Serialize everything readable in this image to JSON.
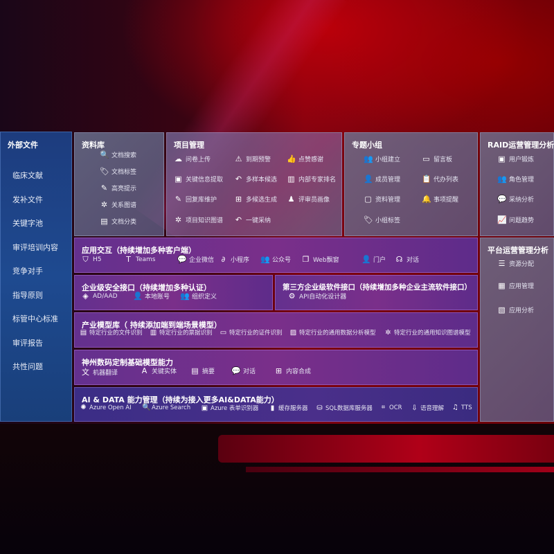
{
  "sidebar": {
    "title": "外部文件",
    "items": [
      "临床文献",
      "发补文件",
      "关键字池",
      "审评培训内容",
      "竞争对手",
      "指导原则",
      "标管中心标准",
      "审评报告",
      "共性问题"
    ]
  },
  "panels": {
    "library": {
      "title": "资料库",
      "items": [
        {
          "label": "文档搜索",
          "icon": "doc-search-icon",
          "glyph": "🔍"
        },
        {
          "label": "文档标签",
          "icon": "tag-icon",
          "glyph": "🏷"
        },
        {
          "label": "高亮提示",
          "icon": "pen-icon",
          "glyph": "✎"
        },
        {
          "label": "关系图谱",
          "icon": "graph-icon",
          "glyph": "✲"
        },
        {
          "label": "文档分类",
          "icon": "doc-category-icon",
          "glyph": "▤"
        }
      ]
    },
    "project": {
      "title": "项目管理",
      "items": [
        {
          "label": "问卷上传",
          "icon": "cloud-upload-icon",
          "glyph": "☁"
        },
        {
          "label": "到期预警",
          "icon": "alarm-icon",
          "glyph": "⚠"
        },
        {
          "label": "点赞感谢",
          "icon": "thumbs-up-icon",
          "glyph": "👍"
        },
        {
          "label": "关键信息提取",
          "icon": "window-icon",
          "glyph": "▣"
        },
        {
          "label": "多样本候选",
          "icon": "reply-icon",
          "glyph": "↶"
        },
        {
          "label": "内部专家排名",
          "icon": "ranking-icon",
          "glyph": "▥"
        },
        {
          "label": "回复库维护",
          "icon": "edit-icon",
          "glyph": "✎"
        },
        {
          "label": "多候选生成",
          "icon": "puzzle-icon",
          "glyph": "⊞"
        },
        {
          "label": "评审员画像",
          "icon": "person-icon",
          "glyph": "♟"
        },
        {
          "label": "项目知识图谱",
          "icon": "graph-icon",
          "glyph": "✲"
        },
        {
          "label": "一键采纳",
          "icon": "reply-icon",
          "glyph": "↶"
        }
      ]
    },
    "group": {
      "title": "专题小组",
      "items": [
        {
          "label": "小组建立",
          "icon": "group-icon",
          "glyph": "👥"
        },
        {
          "label": "留言板",
          "icon": "bbs-icon",
          "glyph": "▭"
        },
        {
          "label": "成员管理",
          "icon": "add-user-icon",
          "glyph": "👤"
        },
        {
          "label": "代办列表",
          "icon": "clipboard-icon",
          "glyph": "📋"
        },
        {
          "label": "资料管理",
          "icon": "folder-icon",
          "glyph": "▢"
        },
        {
          "label": "事项提醒",
          "icon": "bell-icon",
          "glyph": "🔔"
        },
        {
          "label": "小组标签",
          "icon": "tag-icon",
          "glyph": "🏷"
        }
      ]
    },
    "raid": {
      "title": "RAID运营管理分析",
      "items": [
        {
          "label": "用户锻炼",
          "icon": "id-card-icon",
          "glyph": "▣"
        },
        {
          "label": "角色管理",
          "icon": "users-icon",
          "glyph": "👥"
        },
        {
          "label": "采纳分析",
          "icon": "qa-icon",
          "glyph": "💬"
        },
        {
          "label": "问题趋势",
          "icon": "trend-icon",
          "glyph": "📈"
        }
      ]
    },
    "platform": {
      "title": "平台运营管理分析",
      "items": [
        {
          "label": "资源分配",
          "icon": "checklist-icon",
          "glyph": "☰"
        },
        {
          "label": "应用管理",
          "icon": "apps-icon",
          "glyph": "▦"
        },
        {
          "label": "应用分析",
          "icon": "analysis-icon",
          "glyph": "▧"
        }
      ]
    },
    "app": {
      "title": "应用交互（持续增加多种客户端）",
      "items": [
        {
          "label": "H5",
          "icon": "html5-icon",
          "glyph": "⛉"
        },
        {
          "label": "Teams",
          "icon": "teams-icon",
          "glyph": "T"
        },
        {
          "label": "企业微信",
          "icon": "wechat-work-icon",
          "glyph": "💬"
        },
        {
          "label": "小程序",
          "icon": "mini-program-icon",
          "glyph": "∂"
        },
        {
          "label": "公众号",
          "icon": "official-account-icon",
          "glyph": "👥"
        },
        {
          "label": "Web飘窗",
          "icon": "window-icon",
          "glyph": "❐"
        },
        {
          "label": "门户",
          "icon": "portal-icon",
          "glyph": "👤"
        },
        {
          "label": "对话",
          "icon": "chat-icon",
          "glyph": "☊"
        }
      ]
    },
    "security": {
      "title": "企业级安全接口（持续增加多种认证）",
      "items": [
        {
          "label": "AD/AAD",
          "icon": "ad-icon",
          "glyph": "◈"
        },
        {
          "label": "本地账号",
          "icon": "local-account-icon",
          "glyph": "👤"
        },
        {
          "label": "组织定义",
          "icon": "org-icon",
          "glyph": "👥"
        }
      ]
    },
    "thirdparty": {
      "title": "第三方企业级软件接口（持续增加多种企业主流软件接口）",
      "items": [
        {
          "label": "API自动化设计器",
          "icon": "api-gear-icon",
          "glyph": "⚙"
        }
      ]
    },
    "industry": {
      "title": "产业模型库（ 持续添加端到端场景模型）",
      "items": [
        {
          "label": "特定行业的文件识别",
          "icon": "file-icon",
          "glyph": "▤"
        },
        {
          "label": "特定行业的票据识别",
          "icon": "receipt-icon",
          "glyph": "▥"
        },
        {
          "label": "特定行业的证件识别",
          "icon": "id-card-icon",
          "glyph": "▭"
        },
        {
          "label": "特定行业的通用数据分析模型",
          "icon": "chart-icon",
          "glyph": "▨"
        },
        {
          "label": "特定行业的通用知识图谱模型",
          "icon": "graph-icon",
          "glyph": "✲"
        }
      ]
    },
    "base": {
      "title": "神州数码定制基础模型能力",
      "items": [
        {
          "label": "机器翻译",
          "icon": "translate-icon",
          "glyph": "文"
        },
        {
          "label": "关键实体",
          "icon": "entity-icon",
          "glyph": "A"
        },
        {
          "label": "摘要",
          "icon": "summary-icon",
          "glyph": "▤"
        },
        {
          "label": "对话",
          "icon": "chat-icon",
          "glyph": "💬"
        },
        {
          "label": "内容合成",
          "icon": "puzzle-icon",
          "glyph": "⊞"
        }
      ]
    },
    "ai": {
      "title": "AI & DATA 能力管理（持续为接入更多AI&DATA能力）",
      "items": [
        {
          "label": "Azure Open AI",
          "icon": "openai-icon",
          "glyph": "✺"
        },
        {
          "label": "Azure Search",
          "icon": "search-doc-icon",
          "glyph": "🔍"
        },
        {
          "label": "Azure 表单识别器",
          "icon": "form-recognizer-icon",
          "glyph": "▣"
        },
        {
          "label": "缓存服务器",
          "icon": "cache-server-icon",
          "glyph": "▮"
        },
        {
          "label": "SQL数据库服务器",
          "icon": "database-icon",
          "glyph": "⛁"
        },
        {
          "label": "OCR",
          "icon": "ocr-icon",
          "glyph": "⌗"
        },
        {
          "label": "语音理解",
          "icon": "speech-icon",
          "glyph": "⇩"
        },
        {
          "label": "TTS",
          "icon": "tts-icon",
          "glyph": "♫"
        }
      ]
    }
  }
}
